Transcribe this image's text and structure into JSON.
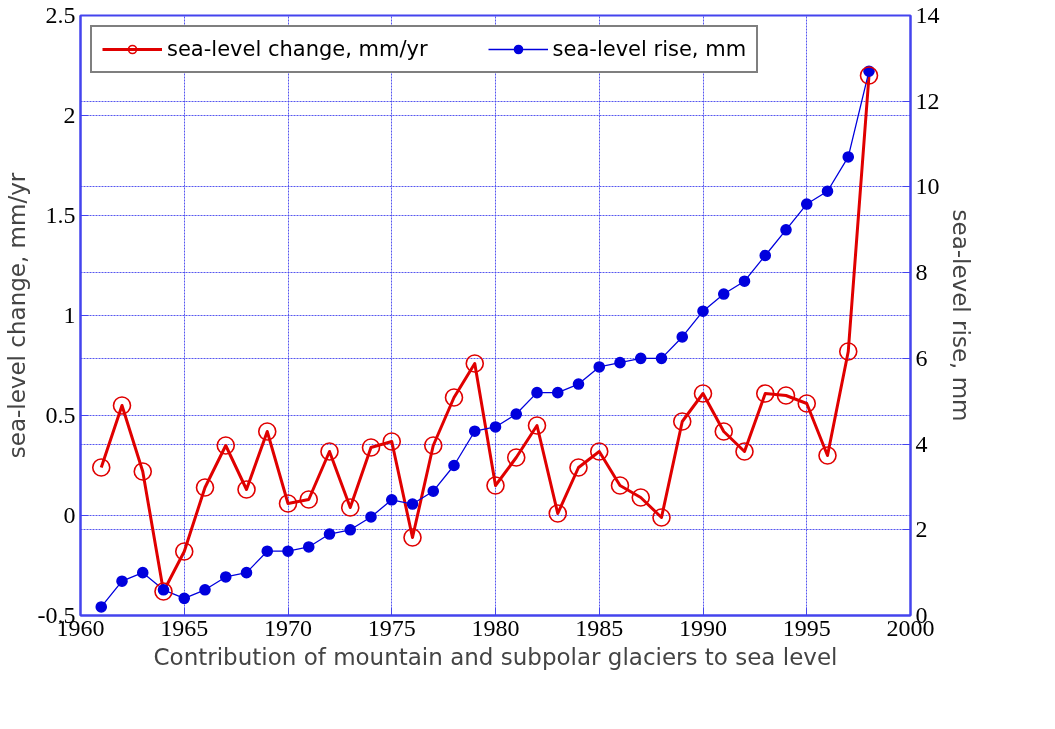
{
  "chart_data": {
    "type": "line",
    "xlabel": "Contribution of mountain and subpolar glaciers to sea level",
    "ylabel": "sea-level change, mm/yr",
    "y2label": "sea-level rise, mm",
    "x": [
      1961,
      1962,
      1963,
      1964,
      1965,
      1966,
      1967,
      1968,
      1969,
      1970,
      1971,
      1972,
      1973,
      1974,
      1975,
      1976,
      1977,
      1978,
      1979,
      1980,
      1981,
      1982,
      1983,
      1984,
      1985,
      1986,
      1987,
      1988,
      1989,
      1990,
      1991,
      1992,
      1993,
      1994,
      1995,
      1996,
      1997,
      1998
    ],
    "series": [
      {
        "name": "sea-level change, mm/yr",
        "color": "#e00000",
        "values": [
          0.24,
          0.55,
          0.22,
          -0.38,
          -0.18,
          0.14,
          0.35,
          0.13,
          0.42,
          0.06,
          0.08,
          0.32,
          0.04,
          0.34,
          0.37,
          -0.11,
          0.35,
          0.59,
          0.76,
          0.15,
          0.29,
          0.45,
          0.01,
          0.24,
          0.32,
          0.15,
          0.09,
          -0.01,
          0.47,
          0.61,
          0.42,
          0.32,
          0.61,
          0.6,
          0.56,
          0.3,
          0.82,
          2.2
        ]
      },
      {
        "name": "sea-level rise, mm",
        "color": "#0000dd",
        "axis": "y2",
        "values": [
          0.2,
          0.8,
          1.0,
          0.6,
          0.4,
          0.6,
          0.9,
          1.0,
          1.5,
          1.5,
          1.6,
          1.9,
          2.0,
          2.3,
          2.7,
          2.6,
          2.9,
          3.5,
          4.3,
          4.4,
          4.7,
          5.2,
          5.2,
          5.4,
          5.8,
          5.9,
          6.0,
          6.0,
          6.5,
          7.1,
          7.5,
          7.8,
          8.4,
          9.0,
          9.6,
          9.9,
          10.7,
          12.7
        ]
      }
    ],
    "xlim": [
      1960,
      2000
    ],
    "xticks": [
      1960,
      1965,
      1970,
      1975,
      1980,
      1985,
      1990,
      1995,
      2000
    ],
    "ylim": [
      -0.5,
      2.5
    ],
    "yticks": [
      -0.5,
      0,
      0.5,
      1,
      1.5,
      2,
      2.5
    ],
    "y2lim": [
      0,
      14
    ],
    "y2ticks": [
      0,
      2,
      4,
      6,
      8,
      10,
      12,
      14
    ],
    "grid": true,
    "legend": "top",
    "marker": "circle",
    "line_style": "solid"
  }
}
